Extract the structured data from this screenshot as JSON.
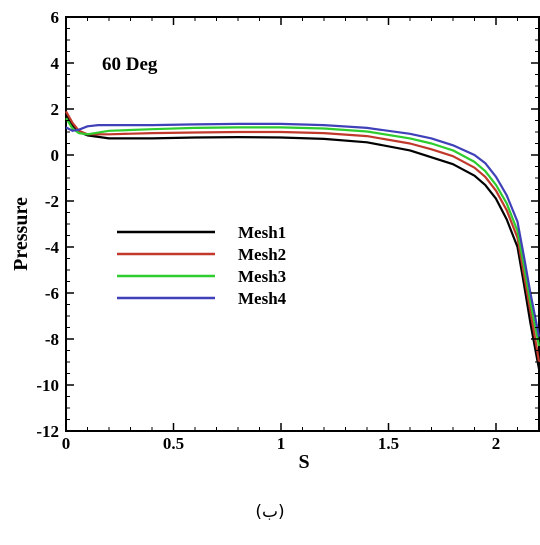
{
  "caption": "(ب)",
  "chart_data": {
    "type": "line",
    "title": "",
    "annotation": "60 Deg",
    "xlabel": "S",
    "ylabel": "Pressure",
    "xlim": [
      0,
      2.2
    ],
    "ylim": [
      -12,
      6
    ],
    "x_ticks": [
      0,
      0.5,
      1,
      1.5,
      2
    ],
    "x_tick_labels": [
      "0",
      "0.5",
      "1",
      "1.5",
      "2"
    ],
    "y_ticks": [
      6,
      4,
      2,
      0,
      -2,
      -4,
      -6,
      -8,
      -10,
      -12
    ],
    "y_tick_labels": [
      "6",
      "4",
      "2",
      "0",
      "-2",
      "-4",
      "-6",
      "-8",
      "-10",
      "-12"
    ],
    "grid": false,
    "legend_position": "middle-left",
    "series": [
      {
        "name": "Mesh1",
        "color": "#000000",
        "x": [
          0,
          0.03,
          0.06,
          0.1,
          0.2,
          0.4,
          0.6,
          0.8,
          1.0,
          1.2,
          1.4,
          1.6,
          1.7,
          1.8,
          1.9,
          1.95,
          2.0,
          2.05,
          2.1,
          2.13,
          2.16,
          2.19,
          2.2
        ],
        "y": [
          1.8,
          1.3,
          1.0,
          0.85,
          0.72,
          0.72,
          0.76,
          0.78,
          0.76,
          0.7,
          0.55,
          0.2,
          -0.1,
          -0.4,
          -0.9,
          -1.3,
          -1.9,
          -2.8,
          -4.0,
          -5.6,
          -7.3,
          -8.8,
          -9.3
        ]
      },
      {
        "name": "Mesh2",
        "color": "#c0392b",
        "x": [
          0,
          0.03,
          0.06,
          0.1,
          0.2,
          0.4,
          0.6,
          0.8,
          1.0,
          1.2,
          1.4,
          1.6,
          1.7,
          1.8,
          1.9,
          1.95,
          2.0,
          2.05,
          2.1,
          2.13,
          2.16,
          2.19,
          2.2
        ],
        "y": [
          1.9,
          1.4,
          1.05,
          0.9,
          0.9,
          0.95,
          0.98,
          1.0,
          1.0,
          0.95,
          0.82,
          0.5,
          0.25,
          -0.05,
          -0.55,
          -0.95,
          -1.55,
          -2.4,
          -3.6,
          -5.2,
          -6.8,
          -8.4,
          -9.0
        ]
      },
      {
        "name": "Mesh3",
        "color": "#2ecc2e",
        "x": [
          0,
          0.03,
          0.06,
          0.1,
          0.2,
          0.4,
          0.6,
          0.8,
          1.0,
          1.2,
          1.4,
          1.6,
          1.7,
          1.8,
          1.9,
          1.95,
          2.0,
          2.05,
          2.1,
          2.13,
          2.16,
          2.19,
          2.2
        ],
        "y": [
          1.6,
          1.15,
          0.95,
          0.9,
          1.05,
          1.12,
          1.18,
          1.2,
          1.2,
          1.15,
          1.02,
          0.72,
          0.5,
          0.2,
          -0.3,
          -0.7,
          -1.3,
          -2.1,
          -3.3,
          -4.8,
          -6.4,
          -7.8,
          -8.3
        ]
      },
      {
        "name": "Mesh4",
        "color": "#4040b8",
        "x": [
          0,
          0.03,
          0.06,
          0.1,
          0.15,
          0.2,
          0.4,
          0.6,
          0.8,
          1.0,
          1.2,
          1.4,
          1.6,
          1.7,
          1.8,
          1.9,
          1.95,
          2.0,
          2.05,
          2.1,
          2.13,
          2.16,
          2.19,
          2.2
        ],
        "y": [
          1.2,
          1.05,
          1.1,
          1.25,
          1.3,
          1.3,
          1.3,
          1.33,
          1.35,
          1.35,
          1.3,
          1.18,
          0.92,
          0.72,
          0.42,
          0.0,
          -0.35,
          -0.95,
          -1.75,
          -2.9,
          -4.4,
          -6.0,
          -7.4,
          -7.9
        ]
      }
    ]
  }
}
